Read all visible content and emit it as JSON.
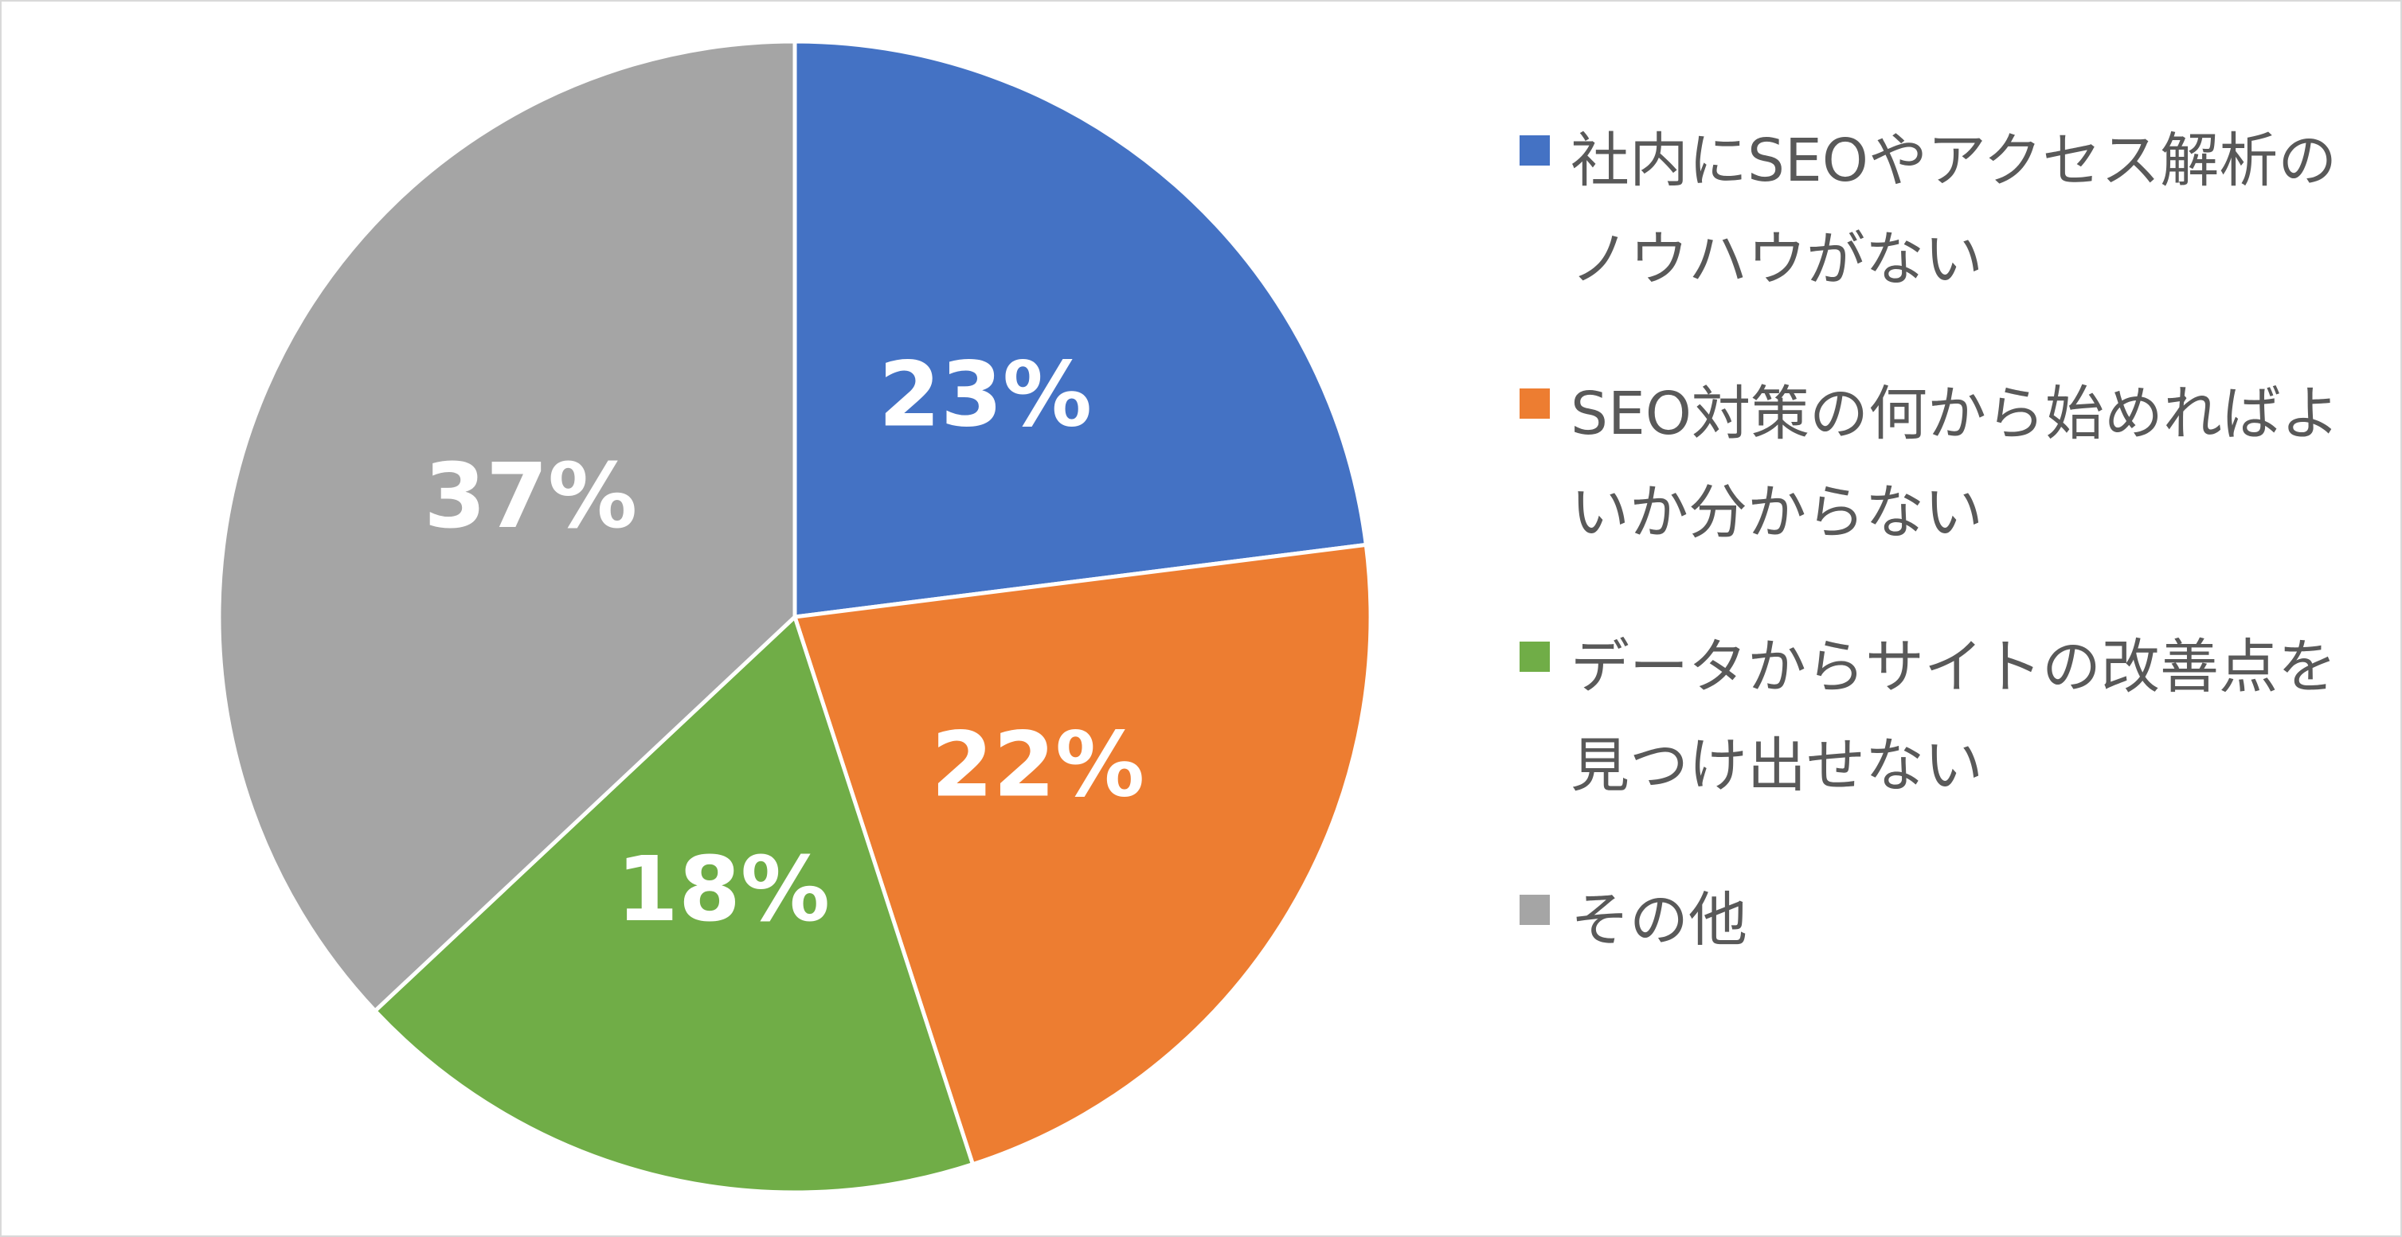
{
  "chart_data": {
    "type": "pie",
    "categories": [
      "社内にSEOやアクセス解析のノウハウがない",
      "SEO対策の何から始めればよいか分からない",
      "データからサイトの改善点を見つけ出せない",
      "その他"
    ],
    "values": [
      23,
      22,
      18,
      37
    ],
    "value_labels": [
      "23%",
      "22%",
      "18%",
      "37%"
    ],
    "colors": [
      "#4472c4",
      "#ed7d31",
      "#70ad47",
      "#a5a5a5"
    ],
    "legend": "right"
  }
}
